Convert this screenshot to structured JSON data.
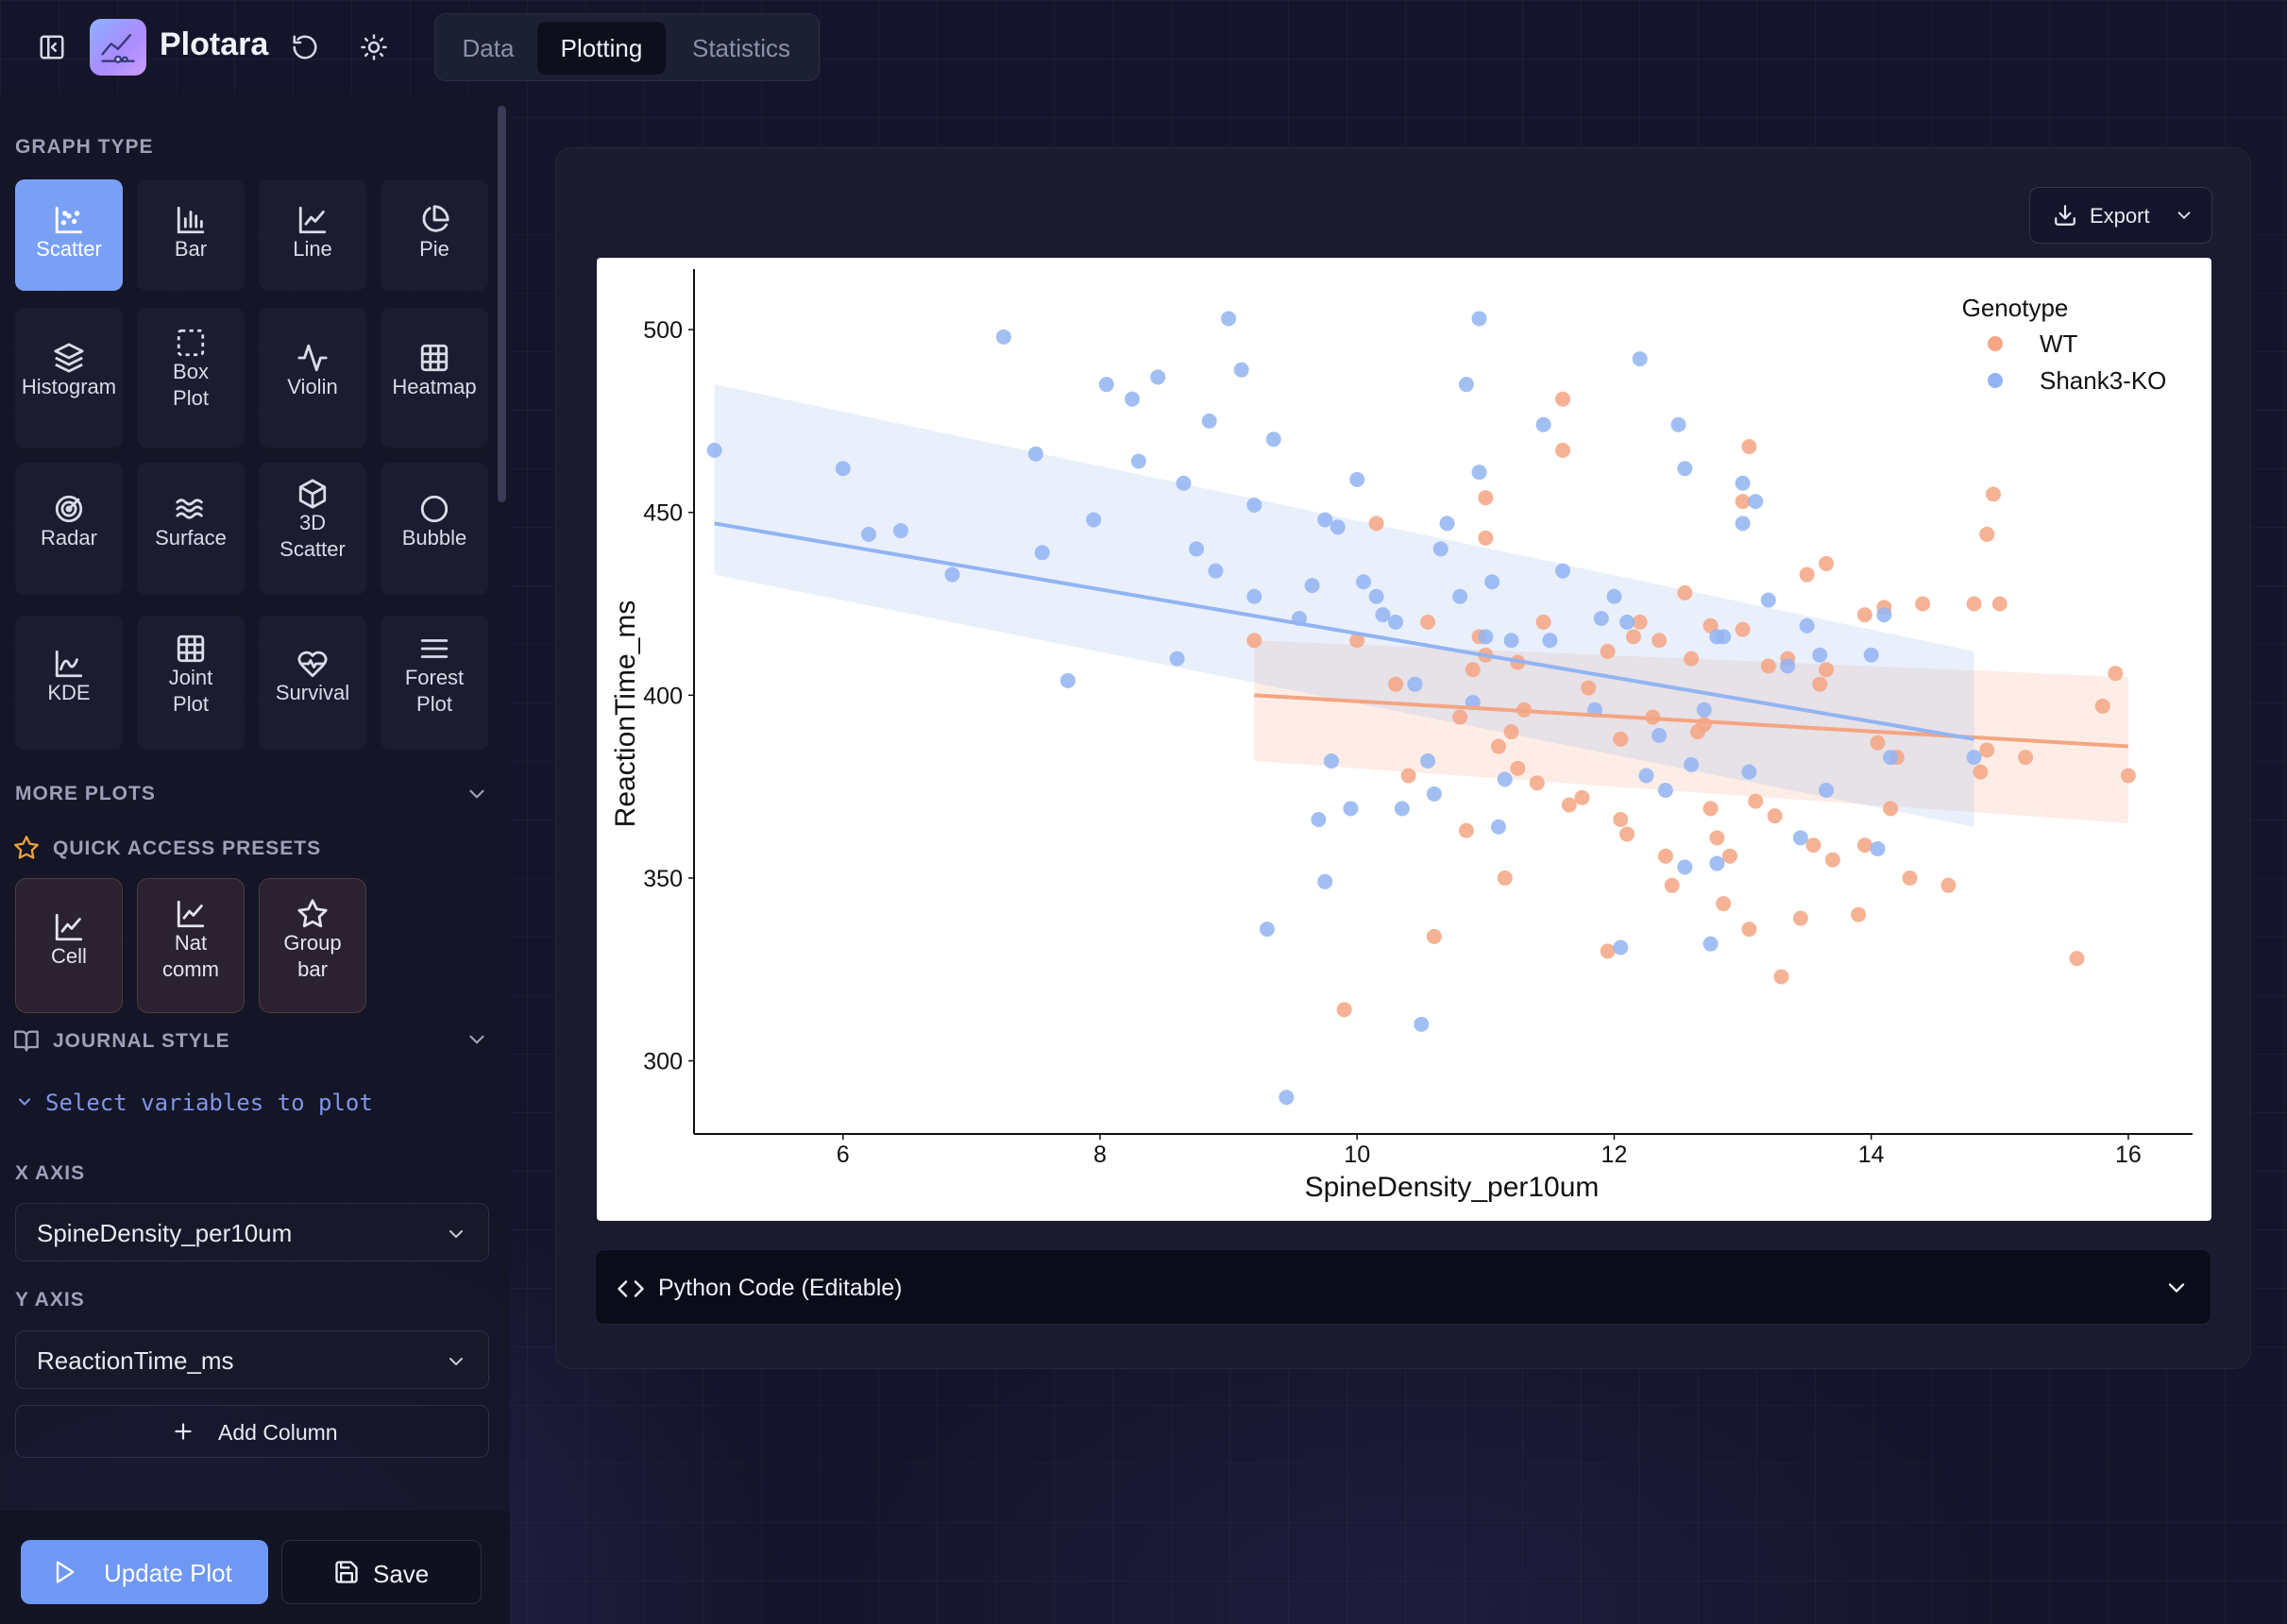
{
  "app": {
    "title": "Plotara"
  },
  "tabs": [
    {
      "label": "Data",
      "active": false
    },
    {
      "label": "Plotting",
      "active": true
    },
    {
      "label": "Statistics",
      "active": false
    }
  ],
  "sidebar": {
    "graph_type_label": "GRAPH TYPE",
    "graph_types": [
      {
        "label": "Scatter",
        "icon": "scatter-icon",
        "active": true
      },
      {
        "label": "Bar",
        "icon": "bar-chart-icon"
      },
      {
        "label": "Line",
        "icon": "line-chart-icon"
      },
      {
        "label": "Pie",
        "icon": "pie-chart-icon"
      },
      {
        "label": "Histogram",
        "icon": "layers-icon"
      },
      {
        "label": "Box Plot",
        "line1": "Box",
        "line2": "Plot",
        "icon": "box-plot-icon"
      },
      {
        "label": "Violin",
        "icon": "activity-icon"
      },
      {
        "label": "Heatmap",
        "icon": "grid-icon"
      },
      {
        "label": "Radar",
        "icon": "radar-icon"
      },
      {
        "label": "Surface",
        "icon": "waves-icon"
      },
      {
        "label": "3D Scatter",
        "line1": "3D",
        "line2": "Scatter",
        "icon": "cube-icon"
      },
      {
        "label": "Bubble",
        "icon": "circle-icon"
      },
      {
        "label": "KDE",
        "icon": "kde-icon"
      },
      {
        "label": "Joint Plot",
        "line1": "Joint",
        "line2": "Plot",
        "icon": "grid-icon"
      },
      {
        "label": "Survival",
        "icon": "heart-pulse-icon"
      },
      {
        "label": "Forest Plot",
        "line1": "Forest",
        "line2": "Plot",
        "icon": "menu-lines-icon"
      }
    ],
    "more_plots_label": "MORE PLOTS",
    "quick_access_label": "QUICK ACCESS PRESETS",
    "presets": [
      {
        "label": "Cell",
        "icon": "line-chart-icon"
      },
      {
        "label": "Nat comm",
        "line1": "Nat",
        "line2": "comm",
        "icon": "line-chart-icon"
      },
      {
        "label": "Group bar",
        "line1": "Group",
        "line2": "bar",
        "icon": "star-icon"
      }
    ],
    "journal_style_label": "JOURNAL STYLE",
    "select_vars_text": "Select variables to plot",
    "x_axis_label": "X AXIS",
    "x_axis_value": "SpineDensity_per10um",
    "y_axis_label": "Y AXIS",
    "y_axis_value": "ReactionTime_ms",
    "add_column_label": "Add Column",
    "update_plot_label": "Update Plot",
    "save_label": "Save"
  },
  "main": {
    "export_label": "Export",
    "code_panel_label": "Python Code (Editable)"
  },
  "colors": {
    "wt": "#f4a582",
    "ko": "#92b4f2",
    "accent": "#7aa0f6"
  },
  "chart_data": {
    "type": "scatter",
    "xlabel": "SpineDensity_per10um",
    "ylabel": "ReactionTime_ms",
    "xlim": [
      4.9,
      16.5
    ],
    "ylim": [
      280,
      515
    ],
    "xticks": [
      6,
      8,
      10,
      12,
      14,
      16
    ],
    "yticks": [
      300,
      350,
      400,
      450,
      500
    ],
    "legend": {
      "title": "Genotype",
      "position": "top-right"
    },
    "grid": false,
    "series": [
      {
        "name": "WT",
        "color": "#f4a582",
        "regression": {
          "x": [
            9.2,
            16.0
          ],
          "y": [
            400,
            386
          ],
          "ci_upper": [
            415,
            405
          ],
          "ci_lower": [
            382,
            365
          ]
        },
        "points": [
          [
            9.2,
            415
          ],
          [
            9.9,
            314
          ],
          [
            10.0,
            415
          ],
          [
            10.15,
            447
          ],
          [
            10.3,
            403
          ],
          [
            10.4,
            378
          ],
          [
            10.55,
            420
          ],
          [
            10.6,
            334
          ],
          [
            10.8,
            394
          ],
          [
            10.85,
            363
          ],
          [
            10.9,
            407
          ],
          [
            10.95,
            416
          ],
          [
            11.0,
            411
          ],
          [
            11.0,
            443
          ],
          [
            11.0,
            454
          ],
          [
            11.1,
            386
          ],
          [
            11.15,
            350
          ],
          [
            11.2,
            390
          ],
          [
            11.25,
            380
          ],
          [
            11.25,
            409
          ],
          [
            11.3,
            396
          ],
          [
            11.4,
            376
          ],
          [
            11.45,
            420
          ],
          [
            11.6,
            467
          ],
          [
            11.6,
            481
          ],
          [
            11.65,
            370
          ],
          [
            11.75,
            372
          ],
          [
            11.8,
            402
          ],
          [
            11.95,
            330
          ],
          [
            11.95,
            412
          ],
          [
            12.05,
            366
          ],
          [
            12.05,
            388
          ],
          [
            12.1,
            362
          ],
          [
            12.15,
            416
          ],
          [
            12.2,
            420
          ],
          [
            12.3,
            394
          ],
          [
            12.35,
            415
          ],
          [
            12.4,
            356
          ],
          [
            12.45,
            348
          ],
          [
            12.55,
            428
          ],
          [
            12.6,
            410
          ],
          [
            12.65,
            390
          ],
          [
            12.7,
            392
          ],
          [
            12.75,
            369
          ],
          [
            12.75,
            419
          ],
          [
            12.8,
            361
          ],
          [
            12.85,
            343
          ],
          [
            12.9,
            356
          ],
          [
            13.0,
            418
          ],
          [
            13.0,
            453
          ],
          [
            13.05,
            468
          ],
          [
            13.05,
            336
          ],
          [
            13.1,
            371
          ],
          [
            13.2,
            408
          ],
          [
            13.25,
            367
          ],
          [
            13.3,
            323
          ],
          [
            13.35,
            410
          ],
          [
            13.45,
            339
          ],
          [
            13.5,
            433
          ],
          [
            13.55,
            359
          ],
          [
            13.6,
            403
          ],
          [
            13.65,
            436
          ],
          [
            13.65,
            407
          ],
          [
            13.7,
            355
          ],
          [
            13.9,
            340
          ],
          [
            13.95,
            422
          ],
          [
            13.95,
            359
          ],
          [
            14.05,
            387
          ],
          [
            14.1,
            424
          ],
          [
            14.15,
            369
          ],
          [
            14.2,
            383
          ],
          [
            14.3,
            350
          ],
          [
            14.4,
            425
          ],
          [
            14.6,
            348
          ],
          [
            14.8,
            425
          ],
          [
            14.85,
            379
          ],
          [
            14.9,
            385
          ],
          [
            14.9,
            444
          ],
          [
            14.95,
            455
          ],
          [
            15.0,
            425
          ],
          [
            15.2,
            383
          ],
          [
            15.8,
            397
          ],
          [
            16.0,
            378
          ],
          [
            15.6,
            328
          ],
          [
            15.9,
            406
          ]
        ]
      },
      {
        "name": "Shank3-KO",
        "color": "#92b4f2",
        "regression": {
          "x": [
            5.0,
            14.8
          ],
          "y": [
            447,
            388
          ],
          "ci_upper": [
            485,
            412
          ],
          "ci_lower": [
            433,
            364
          ]
        },
        "points": [
          [
            5.0,
            467
          ],
          [
            6.0,
            462
          ],
          [
            6.2,
            444
          ],
          [
            6.45,
            445
          ],
          [
            6.85,
            433
          ],
          [
            7.25,
            498
          ],
          [
            7.5,
            466
          ],
          [
            7.55,
            439
          ],
          [
            7.75,
            404
          ],
          [
            7.95,
            448
          ],
          [
            8.05,
            485
          ],
          [
            8.25,
            481
          ],
          [
            8.3,
            464
          ],
          [
            8.45,
            487
          ],
          [
            8.65,
            458
          ],
          [
            8.6,
            410
          ],
          [
            8.75,
            440
          ],
          [
            8.85,
            475
          ],
          [
            9.0,
            503
          ],
          [
            8.9,
            434
          ],
          [
            9.1,
            489
          ],
          [
            9.2,
            452
          ],
          [
            9.2,
            427
          ],
          [
            9.3,
            336
          ],
          [
            9.35,
            470
          ],
          [
            9.45,
            290
          ],
          [
            9.55,
            421
          ],
          [
            9.65,
            430
          ],
          [
            9.7,
            366
          ],
          [
            9.75,
            349
          ],
          [
            9.75,
            448
          ],
          [
            9.8,
            382
          ],
          [
            9.85,
            446
          ],
          [
            9.95,
            369
          ],
          [
            10.0,
            459
          ],
          [
            10.05,
            431
          ],
          [
            10.15,
            427
          ],
          [
            10.2,
            422
          ],
          [
            10.3,
            420
          ],
          [
            10.35,
            369
          ],
          [
            10.45,
            403
          ],
          [
            10.5,
            310
          ],
          [
            10.55,
            382
          ],
          [
            10.6,
            373
          ],
          [
            10.65,
            440
          ],
          [
            10.7,
            447
          ],
          [
            10.8,
            427
          ],
          [
            10.85,
            485
          ],
          [
            10.9,
            398
          ],
          [
            10.95,
            461
          ],
          [
            10.95,
            503
          ],
          [
            11.0,
            416
          ],
          [
            11.05,
            431
          ],
          [
            11.1,
            364
          ],
          [
            11.15,
            377
          ],
          [
            11.2,
            415
          ],
          [
            11.45,
            474
          ],
          [
            11.5,
            415
          ],
          [
            11.6,
            434
          ],
          [
            11.85,
            396
          ],
          [
            11.9,
            421
          ],
          [
            12.0,
            427
          ],
          [
            12.05,
            331
          ],
          [
            12.1,
            420
          ],
          [
            12.2,
            492
          ],
          [
            12.25,
            378
          ],
          [
            12.35,
            389
          ],
          [
            12.4,
            374
          ],
          [
            12.5,
            474
          ],
          [
            12.55,
            353
          ],
          [
            12.55,
            462
          ],
          [
            12.6,
            381
          ],
          [
            12.7,
            396
          ],
          [
            12.75,
            332
          ],
          [
            12.8,
            416
          ],
          [
            12.8,
            354
          ],
          [
            12.85,
            416
          ],
          [
            13.0,
            447
          ],
          [
            13.0,
            458
          ],
          [
            13.05,
            379
          ],
          [
            13.1,
            453
          ],
          [
            13.2,
            426
          ],
          [
            13.45,
            361
          ],
          [
            13.5,
            419
          ],
          [
            13.6,
            411
          ],
          [
            13.65,
            374
          ],
          [
            14.0,
            411
          ],
          [
            14.1,
            422
          ],
          [
            14.15,
            383
          ],
          [
            14.8,
            383
          ],
          [
            13.35,
            408
          ],
          [
            14.05,
            358
          ]
        ]
      }
    ]
  }
}
